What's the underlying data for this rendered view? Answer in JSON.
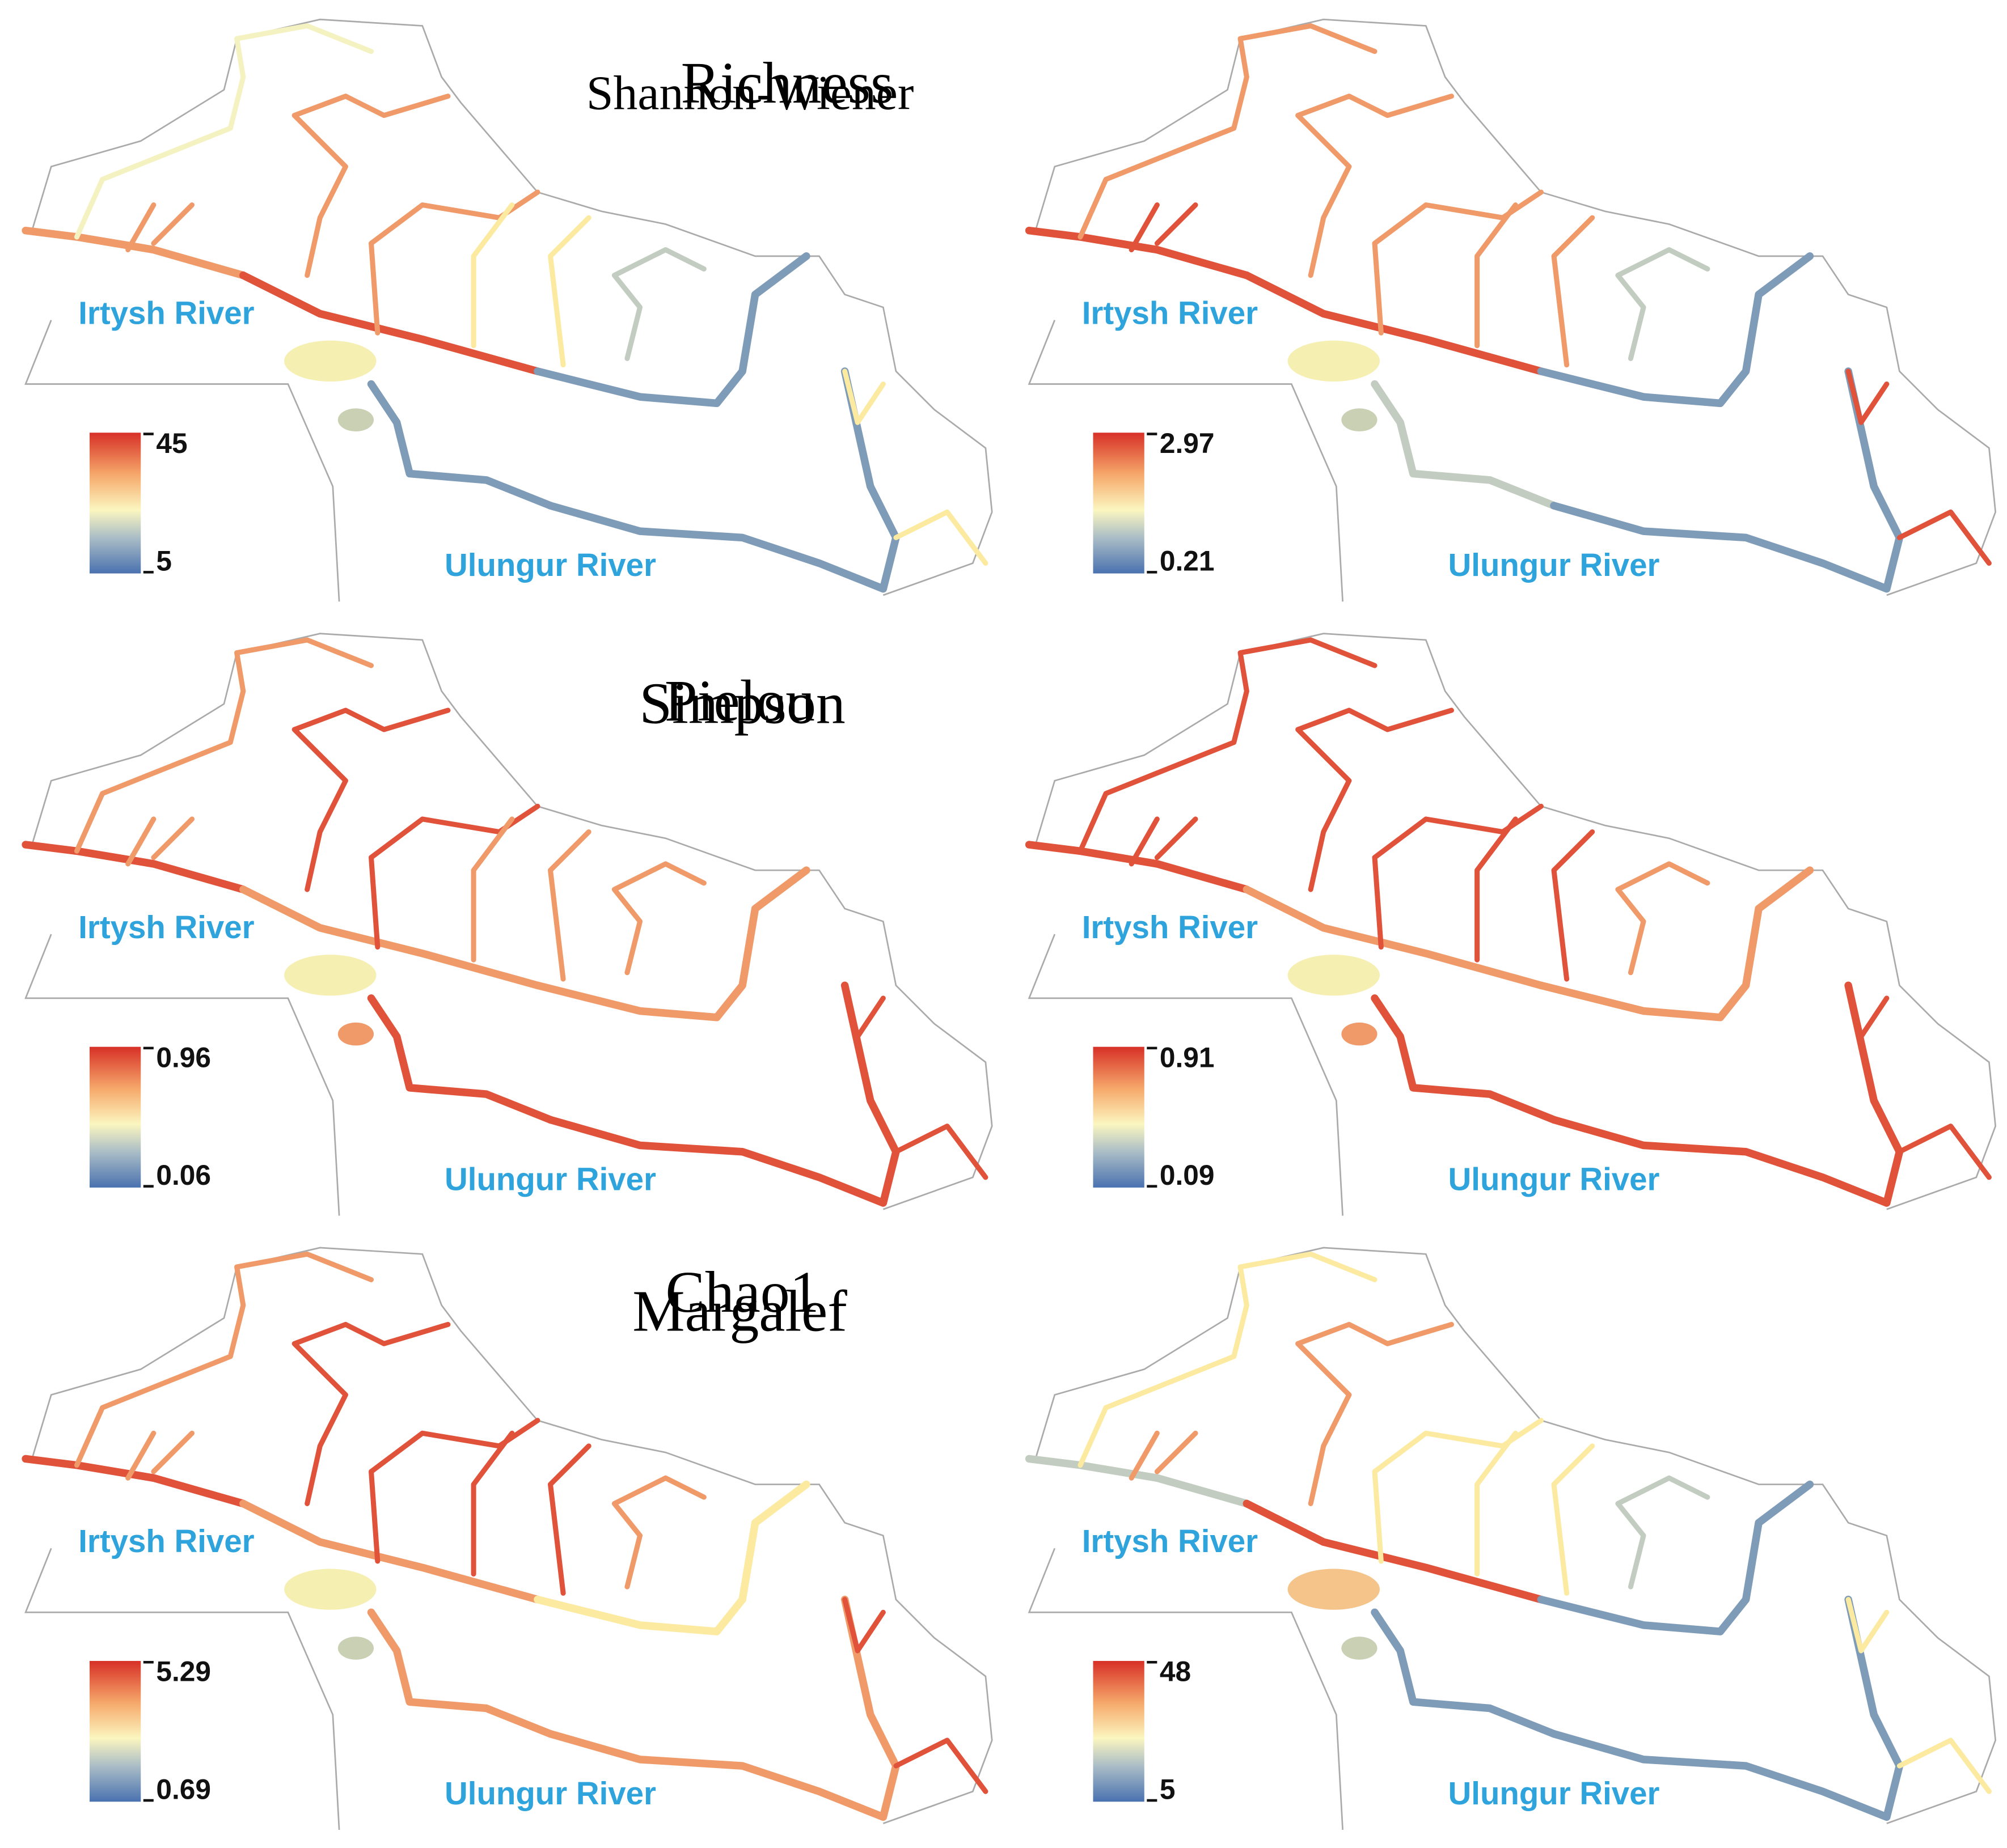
{
  "panels": [
    {
      "title": "Richness",
      "river_1": "Irtysh River",
      "river_2": "Ulungur River",
      "legend_max": "45",
      "legend_min": "5"
    },
    {
      "title": "Shannon-Wiener",
      "river_1": "Irtysh River",
      "river_2": "Ulungur River",
      "legend_max": "2.97",
      "legend_min": "0.21"
    },
    {
      "title": "Simpson",
      "river_1": "Irtysh River",
      "river_2": "Ulungur River",
      "legend_max": "0.96",
      "legend_min": "0.06"
    },
    {
      "title": "Pielou",
      "river_1": "Irtysh River",
      "river_2": "Ulungur River",
      "legend_max": "0.91",
      "legend_min": "0.09"
    },
    {
      "title": "Margalef",
      "river_1": "Irtysh River",
      "river_2": "Ulungur River",
      "legend_max": "5.29",
      "legend_min": "0.69"
    },
    {
      "title": "Chao1",
      "river_1": "Irtysh River",
      "river_2": "Ulungur River",
      "legend_max": "48",
      "legend_min": "5"
    }
  ]
}
